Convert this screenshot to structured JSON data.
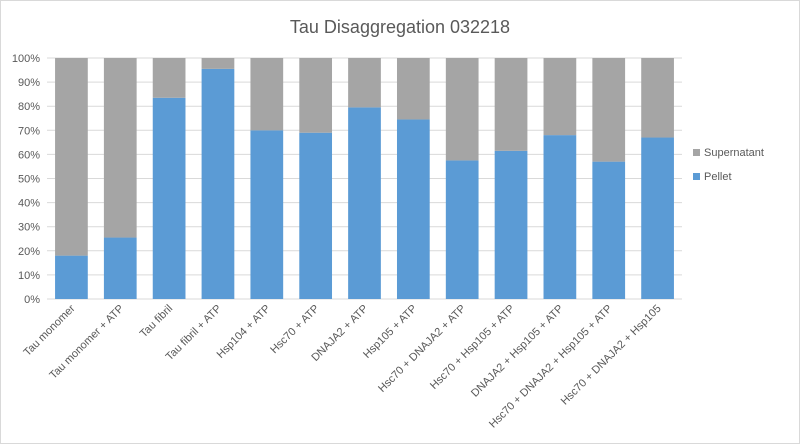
{
  "chart_data": {
    "type": "bar",
    "stacked": true,
    "percent_stacked": true,
    "title": "Tau Disaggregation 032218",
    "xlabel": "",
    "ylabel": "",
    "ylim": [
      0,
      100
    ],
    "y_ticks": [
      "0%",
      "10%",
      "20%",
      "30%",
      "40%",
      "50%",
      "60%",
      "70%",
      "80%",
      "90%",
      "100%"
    ],
    "grid": true,
    "legend_position": "right",
    "categories": [
      "Tau monomer",
      "Tau monomer + ATP",
      "Tau fibril",
      "Tau fibril + ATP",
      "Hsp104 + ATP",
      "Hsc70 + ATP",
      "DNAJA2 + ATP",
      "Hsp105 + ATP",
      "Hsc70 + DNAJA2 + ATP",
      "Hsc70 + Hsp105 + ATP",
      "DNAJA2 + Hsp105 + ATP",
      "Hsc70 + DNAJA2 + Hsp105 + ATP",
      "Hsc70 + DNAJA2 + Hsp105"
    ],
    "series": [
      {
        "name": "Pellet",
        "color": "#5b9bd5",
        "values": [
          18,
          25.5,
          83.5,
          95.5,
          70,
          69,
          79.5,
          74.5,
          57.5,
          61.5,
          68,
          57,
          67
        ]
      },
      {
        "name": "Supernatant",
        "color": "#a5a5a5",
        "values": [
          82,
          74.5,
          16.5,
          4.5,
          30,
          31,
          20.5,
          25.5,
          42.5,
          38.5,
          32,
          43,
          33
        ]
      }
    ],
    "legend": [
      "Supernatant",
      "Pellet"
    ]
  }
}
